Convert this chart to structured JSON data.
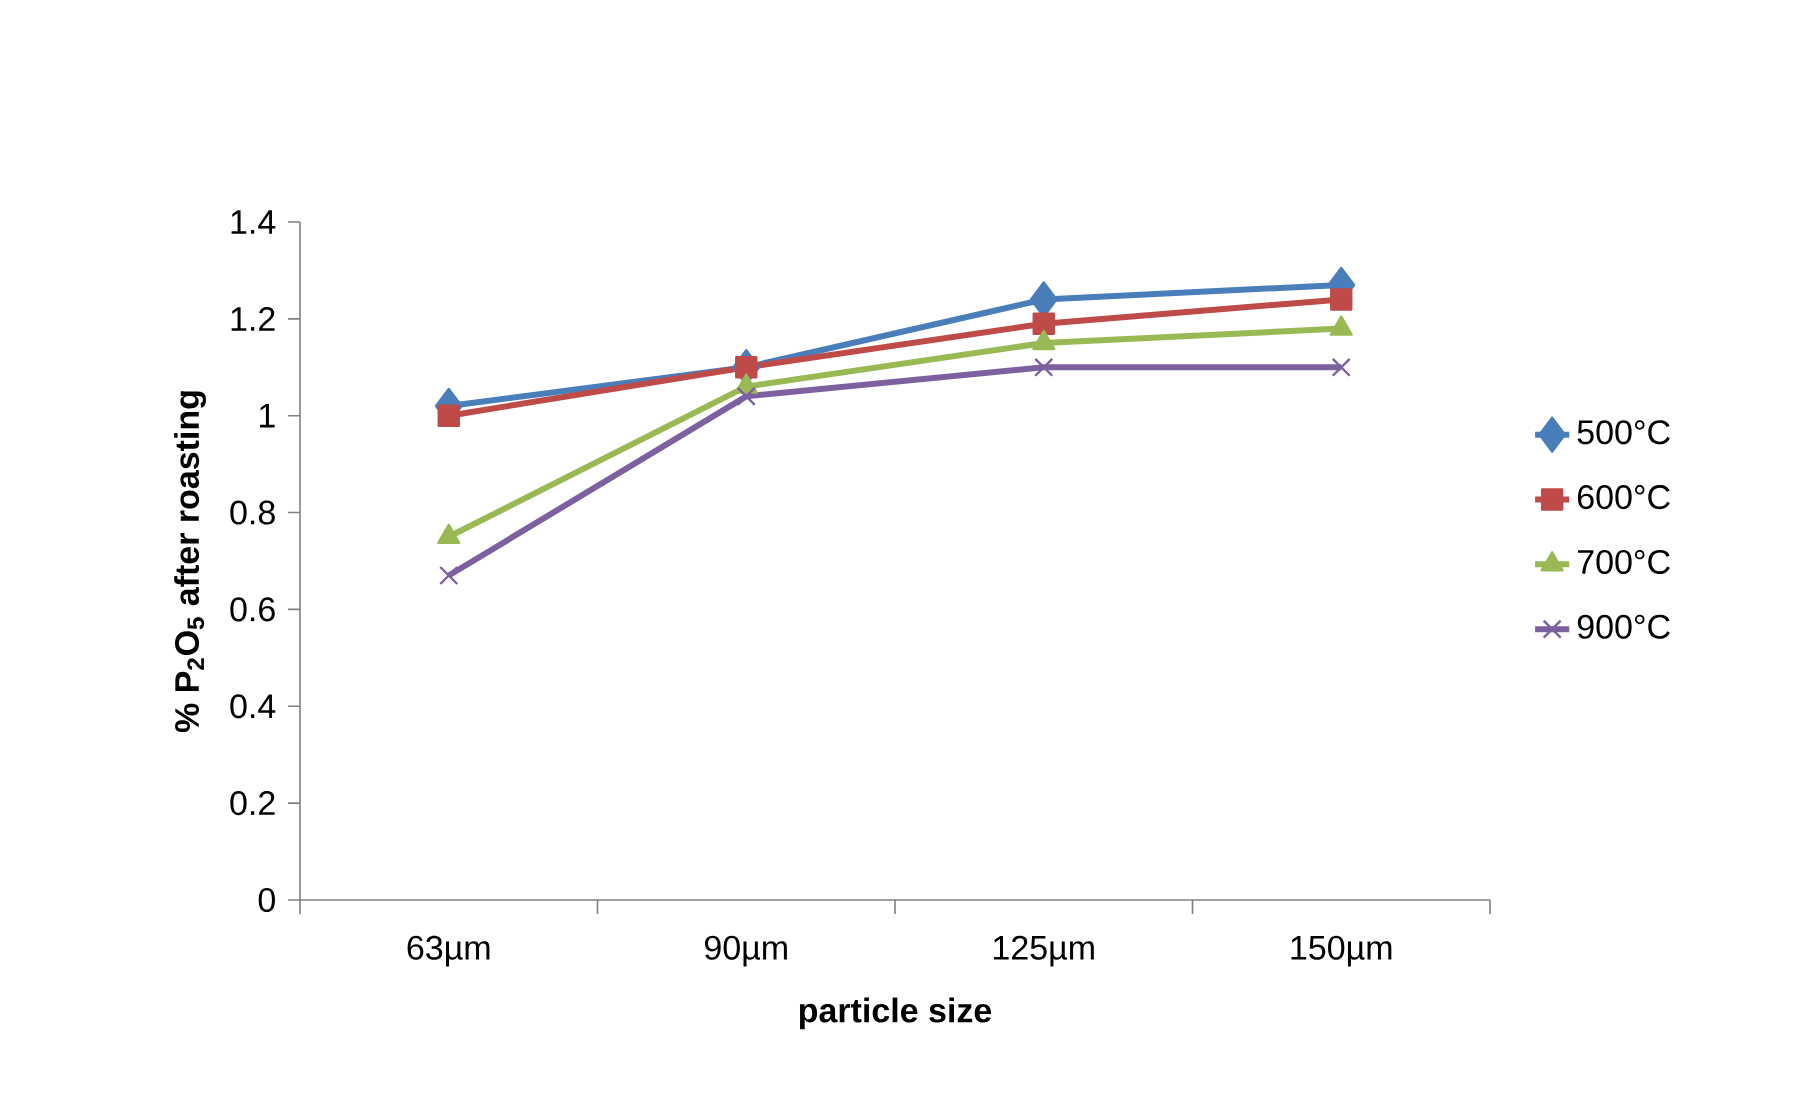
{
  "chart_data": {
    "type": "line",
    "xlabel": "particle size",
    "ylabel": "% P$_{2}$O$_{5}$ after roasting",
    "categories": [
      "63µm",
      "90µm",
      "125µm",
      "150µm"
    ],
    "series": [
      {
        "name": "500°C",
        "color": "#4a7ebb",
        "marker": "diamond",
        "values": [
          1.02,
          1.1,
          1.24,
          1.27
        ]
      },
      {
        "name": "600°C",
        "color": "#be4b48",
        "marker": "square",
        "values": [
          1.0,
          1.1,
          1.19,
          1.24
        ]
      },
      {
        "name": "700°C",
        "color": "#98b954",
        "marker": "triangle",
        "values": [
          0.75,
          1.06,
          1.15,
          1.18
        ]
      },
      {
        "name": "900°C",
        "color": "#7d60a0",
        "marker": "cross",
        "values": [
          0.67,
          1.04,
          1.1,
          1.1
        ]
      }
    ],
    "ylim": [
      0,
      1.4
    ],
    "yticks": [
      0,
      0.2,
      0.4,
      0.6,
      0.8,
      1,
      1.2,
      1.4
    ],
    "grid": false,
    "legend": "right",
    "line_style": "solid"
  }
}
